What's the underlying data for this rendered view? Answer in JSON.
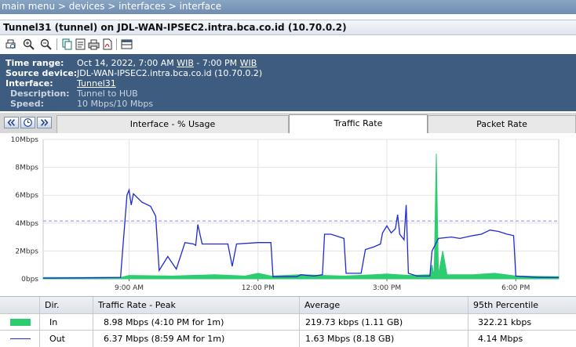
{
  "breadcrumb": "main menu > devices > interfaces > interface",
  "title": "Tunnel31 (tunnel) on JDL-WAN-IPSEC2.intra.bca.co.id (10.70.0.2)",
  "toolbar": [
    "print-preview-icon",
    "zoom-in-icon",
    "zoom-out-icon",
    "copy-icon",
    "report-icon",
    "print-icon",
    "pdf-icon",
    "table-view-icon"
  ],
  "info": {
    "time_range_label": "Time range:",
    "time_range_prefix": "Oct 14, 2022, 7:00 AM ",
    "tz1": "WIB",
    "time_range_mid": " - 7:00 PM ",
    "tz2": "WIB",
    "source_label": "Source device:",
    "source_value": "JDL-WAN-IPSEC2.intra.bca.co.id (10.70.0.2)",
    "interface_label": "Interface:",
    "interface_value": "Tunnel31",
    "description_label": "Description:",
    "description_value": "Tunnel to HUB",
    "speed_label": "Speed:",
    "speed_value": "10 Mbps/10 Mbps"
  },
  "tabs": [
    {
      "label": "Interface - % Usage",
      "active": false
    },
    {
      "label": "Traffic Rate",
      "active": true
    },
    {
      "label": "Packet Rate",
      "active": false
    }
  ],
  "colors": {
    "in": "#2ecc71",
    "out": "#1f2bd1",
    "threshold": "#8a8ae6",
    "grid": "#e3e3e3"
  },
  "chart_data": {
    "type": "line",
    "ylabel": "",
    "y_ticks": [
      "0bps",
      "2Mbps",
      "4Mbps",
      "6Mbps",
      "8Mbps",
      "10Mbps"
    ],
    "ylim": [
      0,
      10
    ],
    "x_ticks": [
      "9:00 AM",
      "12:00 PM",
      "3:00 PM",
      "6:00 PM"
    ],
    "x_tick_hours": [
      9,
      12,
      15,
      18
    ],
    "xlim": [
      7,
      19
    ],
    "threshold_mbps": 4.15,
    "grid": true,
    "series": [
      {
        "name": "In",
        "points": [
          [
            7,
            0.1
          ],
          [
            8.8,
            0.1
          ],
          [
            9.0,
            0.25
          ],
          [
            10.0,
            0.2
          ],
          [
            11.0,
            0.3
          ],
          [
            11.7,
            0.2
          ],
          [
            12.0,
            0.4
          ],
          [
            12.3,
            0.2
          ],
          [
            13.0,
            0.3
          ],
          [
            14.0,
            0.2
          ],
          [
            14.7,
            0.3
          ],
          [
            15.0,
            0.35
          ],
          [
            15.5,
            0.25
          ],
          [
            16.0,
            0.3
          ],
          [
            16.05,
            1.0
          ],
          [
            16.1,
            0.2
          ],
          [
            16.15,
            8.98
          ],
          [
            16.2,
            0.3
          ],
          [
            16.3,
            2.0
          ],
          [
            16.4,
            0.3
          ],
          [
            17.0,
            0.3
          ],
          [
            17.5,
            0.4
          ],
          [
            18.0,
            0.2
          ],
          [
            19,
            0.15
          ]
        ]
      },
      {
        "name": "Out",
        "points": [
          [
            7,
            0.05
          ],
          [
            8.8,
            0.1
          ],
          [
            8.95,
            6.0
          ],
          [
            9.0,
            6.37
          ],
          [
            9.05,
            5.3
          ],
          [
            9.1,
            6.1
          ],
          [
            9.3,
            5.5
          ],
          [
            9.5,
            5.2
          ],
          [
            9.62,
            4.5
          ],
          [
            9.7,
            0.6
          ],
          [
            9.9,
            1.6
          ],
          [
            10.1,
            0.7
          ],
          [
            10.3,
            2.6
          ],
          [
            10.5,
            2.5
          ],
          [
            10.55,
            2.4
          ],
          [
            10.6,
            3.9
          ],
          [
            10.7,
            2.5
          ],
          [
            11.3,
            2.5
          ],
          [
            11.4,
            0.9
          ],
          [
            11.5,
            2.5
          ],
          [
            12.0,
            2.6
          ],
          [
            12.3,
            2.6
          ],
          [
            12.35,
            0.15
          ],
          [
            12.9,
            0.15
          ],
          [
            13.0,
            0.3
          ],
          [
            13.3,
            0.2
          ],
          [
            13.5,
            0.3
          ],
          [
            13.55,
            3.2
          ],
          [
            13.7,
            3.2
          ],
          [
            13.9,
            3.0
          ],
          [
            14.0,
            2.9
          ],
          [
            14.05,
            0.4
          ],
          [
            14.4,
            0.4
          ],
          [
            14.5,
            2.1
          ],
          [
            14.7,
            2.3
          ],
          [
            14.85,
            2.5
          ],
          [
            14.9,
            3.3
          ],
          [
            15.0,
            3.8
          ],
          [
            15.1,
            3.3
          ],
          [
            15.2,
            3.6
          ],
          [
            15.25,
            4.6
          ],
          [
            15.3,
            3.2
          ],
          [
            15.4,
            2.8
          ],
          [
            15.45,
            5.3
          ],
          [
            15.5,
            0.4
          ],
          [
            15.7,
            0.2
          ],
          [
            16.0,
            0.2
          ],
          [
            16.05,
            2.0
          ],
          [
            16.2,
            2.9
          ],
          [
            16.5,
            3.0
          ],
          [
            16.7,
            2.9
          ],
          [
            17.0,
            3.1
          ],
          [
            17.2,
            3.2
          ],
          [
            17.4,
            3.5
          ],
          [
            17.6,
            3.4
          ],
          [
            17.8,
            3.2
          ],
          [
            17.95,
            3.1
          ],
          [
            18.0,
            0.2
          ],
          [
            18.5,
            0.1
          ],
          [
            19,
            0.1
          ]
        ]
      }
    ]
  },
  "stats": {
    "headers": [
      "Dir.",
      "Traffic Rate - Peak",
      "Average",
      "95th Percentile"
    ],
    "rows": [
      {
        "dir": "In",
        "peak": "8.98 Mbps (4:10 PM for 1m)",
        "average": "219.73 kbps (1.11 GB)",
        "p95": "322.21 kbps"
      },
      {
        "dir": "Out",
        "peak": "6.37 Mbps (8:59 AM for 1m)",
        "average": "1.63 Mbps (8.18 GB)",
        "p95": "4.14 Mbps"
      }
    ]
  }
}
